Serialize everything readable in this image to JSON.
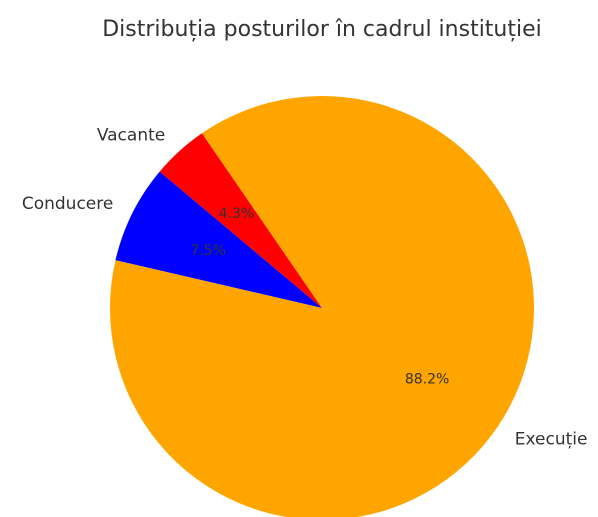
{
  "chart_data": {
    "type": "pie",
    "title": "Distribuția posturilor în cadrul instituției",
    "categories": [
      "Vacante",
      "Conducere",
      "Execuție"
    ],
    "values": [
      4.3,
      7.5,
      88.2
    ],
    "value_labels": [
      "4.3%",
      "7.5%",
      "88.2%"
    ],
    "colors": [
      "#ff0000",
      "#0000ff",
      "#ffa500"
    ]
  }
}
